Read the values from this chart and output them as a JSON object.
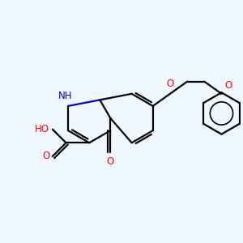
{
  "bg_color": "#f0f8ff",
  "bond_color": "#000000",
  "N_color": "#0000cd",
  "O_color": "#ff0000",
  "lw": 1.6,
  "fs": 8.5,
  "xlim": [
    -0.5,
    3.2
  ],
  "ylim": [
    0.0,
    2.6
  ]
}
